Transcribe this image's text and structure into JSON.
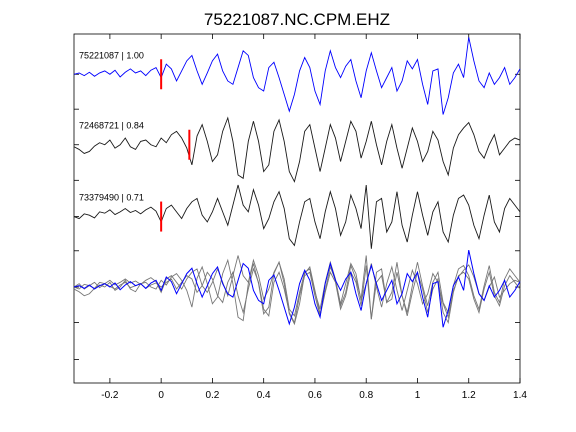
{
  "chart_data": {
    "type": "line",
    "title": "75221087.NC.CPM.EHZ",
    "xlabel": "",
    "ylabel": "",
    "xlim": [
      -0.34,
      1.4
    ],
    "ylim": [
      -4.6,
      0.6
    ],
    "grid": false,
    "x_ticks": [
      -0.2,
      0,
      0.2,
      0.4,
      0.6,
      0.8,
      1,
      1.2,
      1.4
    ],
    "x_tick_labels": [
      "-0.2",
      "0",
      "0.2",
      "0.4",
      "0.6",
      "0.8",
      "1",
      "1.2",
      "1.4"
    ],
    "y_ticks": [
      -4.25,
      -3.7,
      -3.17,
      -2.63,
      -2.12,
      -1.58,
      -1.05,
      -0.52,
      0
    ],
    "colors": {
      "master": "#0000ff",
      "secondary": "#1a1a1a",
      "overlay_secondary": "#777777",
      "pick": "#ff0000"
    },
    "traces": [
      {
        "label": "75221087 | 1.00",
        "offset": 0,
        "pick_time": 0.0,
        "color": "blue",
        "x": [
          -0.34,
          -0.32,
          -0.3,
          -0.28,
          -0.26,
          -0.24,
          -0.22,
          -0.2,
          -0.18,
          -0.16,
          -0.14,
          -0.12,
          -0.1,
          -0.08,
          -0.06,
          -0.04,
          -0.02,
          0,
          0.02,
          0.04,
          0.06,
          0.08,
          0.1,
          0.12,
          0.14,
          0.16,
          0.18,
          0.2,
          0.22,
          0.24,
          0.26,
          0.28,
          0.3,
          0.32,
          0.34,
          0.36,
          0.38,
          0.4,
          0.42,
          0.44,
          0.46,
          0.48,
          0.5,
          0.52,
          0.54,
          0.56,
          0.58,
          0.6,
          0.62,
          0.64,
          0.66,
          0.68,
          0.7,
          0.72,
          0.74,
          0.76,
          0.78,
          0.8,
          0.82,
          0.84,
          0.86,
          0.88,
          0.9,
          0.92,
          0.94,
          0.96,
          0.98,
          1,
          1.02,
          1.04,
          1.06,
          1.08,
          1.1,
          1.12,
          1.14,
          1.16,
          1.18,
          1.2,
          1.22,
          1.24,
          1.26,
          1.28,
          1.3,
          1.32,
          1.34,
          1.36,
          1.38,
          1.4
        ],
        "y": [
          0,
          0.02,
          -0.02,
          0.03,
          -0.03,
          0.02,
          0.05,
          0,
          0.06,
          -0.04,
          0.03,
          0.08,
          0.02,
          0.05,
          -0.02,
          0.06,
          0.1,
          -0.05,
          0.15,
          0.08,
          -0.1,
          0.05,
          0.2,
          0.28,
          0.05,
          -0.15,
          0.02,
          0.2,
          0.3,
          0.05,
          -0.1,
          -0.15,
          0.1,
          0.35,
          0.28,
          -0.05,
          -0.2,
          -0.25,
          0.1,
          0.18,
          -0.05,
          -0.3,
          -0.55,
          -0.3,
          0.05,
          0.25,
          0.1,
          -0.25,
          -0.45,
          0.05,
          0.35,
          0.1,
          -0.05,
          0.12,
          0.22,
          -0.1,
          -0.35,
          0.05,
          0.32,
          0.05,
          -0.2,
          -0.05,
          0.1,
          -0.25,
          -0.1,
          0.2,
          0.08,
          0.22,
          -0.15,
          -0.45,
          0.05,
          0.08,
          -0.6,
          -0.35,
          0.02,
          0.15,
          -0.05,
          0.55,
          0.2,
          -0.1,
          -0.2,
          0.02,
          -0.15,
          -0.05,
          0.1,
          -0.15,
          -0.05,
          0.08
        ]
      },
      {
        "label": "72468721 | 0.84",
        "offset": -1.05,
        "pick_time": 0.11,
        "color": "black",
        "x": [
          -0.34,
          -0.32,
          -0.3,
          -0.28,
          -0.26,
          -0.24,
          -0.22,
          -0.2,
          -0.18,
          -0.16,
          -0.14,
          -0.12,
          -0.1,
          -0.08,
          -0.06,
          -0.04,
          -0.02,
          0,
          0.02,
          0.04,
          0.06,
          0.08,
          0.1,
          0.12,
          0.14,
          0.16,
          0.18,
          0.2,
          0.22,
          0.24,
          0.26,
          0.28,
          0.3,
          0.32,
          0.34,
          0.36,
          0.38,
          0.4,
          0.42,
          0.44,
          0.46,
          0.48,
          0.5,
          0.52,
          0.54,
          0.56,
          0.58,
          0.6,
          0.62,
          0.64,
          0.66,
          0.68,
          0.7,
          0.72,
          0.74,
          0.76,
          0.78,
          0.8,
          0.82,
          0.84,
          0.86,
          0.88,
          0.9,
          0.92,
          0.94,
          0.96,
          0.98,
          1,
          1.02,
          1.04,
          1.06,
          1.08,
          1.1,
          1.12,
          1.14,
          1.16,
          1.18,
          1.2,
          1.22,
          1.24,
          1.26,
          1.28,
          1.3,
          1.32,
          1.34,
          1.36,
          1.38,
          1.4
        ],
        "y": [
          -1.08,
          -1.12,
          -1.18,
          -1.15,
          -1.07,
          -1.02,
          -1.05,
          -0.98,
          -1.1,
          -1.05,
          -0.95,
          -1.08,
          -1.12,
          -1.0,
          -0.98,
          -1.05,
          -1.08,
          -0.95,
          -1.02,
          -0.9,
          -0.85,
          -0.95,
          -1.1,
          -1.35,
          -0.92,
          -0.75,
          -1.0,
          -1.3,
          -1.2,
          -0.85,
          -0.65,
          -1.0,
          -1.5,
          -1.55,
          -1.0,
          -0.7,
          -1.0,
          -1.45,
          -1.35,
          -0.85,
          -0.68,
          -1.0,
          -1.45,
          -1.6,
          -1.3,
          -0.85,
          -0.75,
          -1.1,
          -1.45,
          -1.1,
          -0.75,
          -0.95,
          -1.3,
          -1.0,
          -0.7,
          -0.85,
          -1.25,
          -1.0,
          -0.7,
          -1.05,
          -1.35,
          -1.0,
          -0.75,
          -1.1,
          -1.4,
          -1.1,
          -0.8,
          -1.0,
          -1.3,
          -1.15,
          -0.85,
          -0.98,
          -1.3,
          -1.5,
          -1.1,
          -0.9,
          -0.8,
          -0.72,
          -0.9,
          -1.15,
          -1.25,
          -1.05,
          -0.9,
          -1.2,
          -1.1,
          -1.0,
          -0.95,
          -0.98
        ]
      },
      {
        "label": "73379490 | 0.71",
        "offset": -2.12,
        "pick_time": 0.0,
        "color": "black",
        "x": [
          -0.34,
          -0.32,
          -0.3,
          -0.28,
          -0.26,
          -0.24,
          -0.22,
          -0.2,
          -0.18,
          -0.16,
          -0.14,
          -0.12,
          -0.1,
          -0.08,
          -0.06,
          -0.04,
          -0.02,
          0,
          0.02,
          0.04,
          0.06,
          0.08,
          0.1,
          0.12,
          0.14,
          0.16,
          0.18,
          0.2,
          0.22,
          0.24,
          0.26,
          0.28,
          0.3,
          0.32,
          0.34,
          0.36,
          0.38,
          0.4,
          0.42,
          0.44,
          0.46,
          0.48,
          0.5,
          0.52,
          0.54,
          0.56,
          0.58,
          0.6,
          0.62,
          0.64,
          0.66,
          0.68,
          0.7,
          0.72,
          0.74,
          0.76,
          0.78,
          0.8,
          0.82,
          0.84,
          0.86,
          0.88,
          0.9,
          0.92,
          0.94,
          0.96,
          0.98,
          1,
          1.02,
          1.04,
          1.06,
          1.08,
          1.1,
          1.12,
          1.14,
          1.16,
          1.18,
          1.2,
          1.22,
          1.24,
          1.26,
          1.28,
          1.3,
          1.32,
          1.34,
          1.36,
          1.38,
          1.4
        ],
        "y": [
          -2.12,
          -2.15,
          -2.08,
          -2.1,
          -2.14,
          -2.05,
          -2.07,
          -2.02,
          -2.09,
          -2.05,
          -2.0,
          -2.06,
          -2.03,
          -2.08,
          -2.02,
          -1.98,
          -2.04,
          -2.2,
          -2.0,
          -1.95,
          -2.05,
          -2.15,
          -2.0,
          -1.9,
          -1.85,
          -2.1,
          -2.2,
          -2.05,
          -1.85,
          -2.05,
          -2.25,
          -1.95,
          -1.65,
          -1.95,
          -2.05,
          -1.72,
          -1.95,
          -2.3,
          -2.15,
          -1.9,
          -1.75,
          -2.0,
          -2.45,
          -2.55,
          -2.2,
          -1.9,
          -1.85,
          -2.2,
          -2.45,
          -2.05,
          -1.75,
          -2.0,
          -2.4,
          -2.2,
          -1.8,
          -2.0,
          -2.3,
          -1.65,
          -2.6,
          -1.9,
          -1.85,
          -2.35,
          -2.2,
          -1.75,
          -2.25,
          -2.5,
          -2.1,
          -1.75,
          -2.1,
          -2.4,
          -2.05,
          -1.9,
          -2.35,
          -2.5,
          -2.1,
          -1.85,
          -1.8,
          -1.95,
          -2.25,
          -2.45,
          -2.1,
          -1.8,
          -2.2,
          -2.35,
          -2.0,
          -1.85,
          -1.95,
          -2.05
        ]
      },
      {
        "label": "",
        "offset": -3.17,
        "pick_time": null,
        "color": "overlay",
        "x": [
          -0.34,
          -0.32,
          -0.3,
          -0.28,
          -0.26,
          -0.24,
          -0.22,
          -0.2,
          -0.18,
          -0.16,
          -0.14,
          -0.12,
          -0.1,
          -0.08,
          -0.06,
          -0.04,
          -0.02,
          0,
          0.02,
          0.04,
          0.06,
          0.08,
          0.1,
          0.12,
          0.14,
          0.16,
          0.18,
          0.2,
          0.22,
          0.24,
          0.26,
          0.28,
          0.3,
          0.32,
          0.34,
          0.36,
          0.38,
          0.4,
          0.42,
          0.44,
          0.46,
          0.48,
          0.5,
          0.52,
          0.54,
          0.56,
          0.58,
          0.6,
          0.62,
          0.64,
          0.66,
          0.68,
          0.7,
          0.72,
          0.74,
          0.76,
          0.78,
          0.8,
          0.82,
          0.84,
          0.86,
          0.88,
          0.9,
          0.92,
          0.94,
          0.96,
          0.98,
          1,
          1.02,
          1.04,
          1.06,
          1.08,
          1.1,
          1.12,
          1.14,
          1.16,
          1.18,
          1.2,
          1.22,
          1.24,
          1.26,
          1.28,
          1.3,
          1.32,
          1.34,
          1.36,
          1.38,
          1.4
        ],
        "y": [
          -3.17,
          -3.12,
          -3.2,
          -3.15,
          -3.1,
          -3.18,
          -3.12,
          -3.16,
          -3.2,
          -3.14,
          -3.1,
          -3.18,
          -3.15,
          -3.12,
          -3.19,
          -3.14,
          -3.11,
          -3.17,
          -3.1,
          -3.05,
          -3.2,
          -3.1,
          -3.0,
          -3.05,
          -3.25,
          -3.15,
          -2.95,
          -3.05,
          -3.3,
          -3.4,
          -3.1,
          -2.95,
          -3.3,
          -3.55,
          -3.2,
          -2.9,
          -3.1,
          -3.5,
          -3.6,
          -3.1,
          -2.95,
          -3.2,
          -3.55,
          -3.7,
          -3.3,
          -3.0,
          -2.95,
          -3.3,
          -3.6,
          -3.25,
          -2.95,
          -3.1,
          -3.5,
          -3.3,
          -2.95,
          -3.1,
          -3.45,
          -2.85,
          -3.65,
          -3.1,
          -3.0,
          -3.4,
          -3.35,
          -2.95,
          -3.3,
          -3.6,
          -3.25,
          -2.95,
          -3.2,
          -3.55,
          -3.2,
          -3.05,
          -3.55,
          -3.7,
          -3.25,
          -3.0,
          -2.95,
          -3.05,
          -3.35,
          -3.55,
          -3.2,
          -2.95,
          -3.3,
          -3.45,
          -3.15,
          -3.0,
          -3.1,
          -3.2
        ]
      }
    ]
  }
}
